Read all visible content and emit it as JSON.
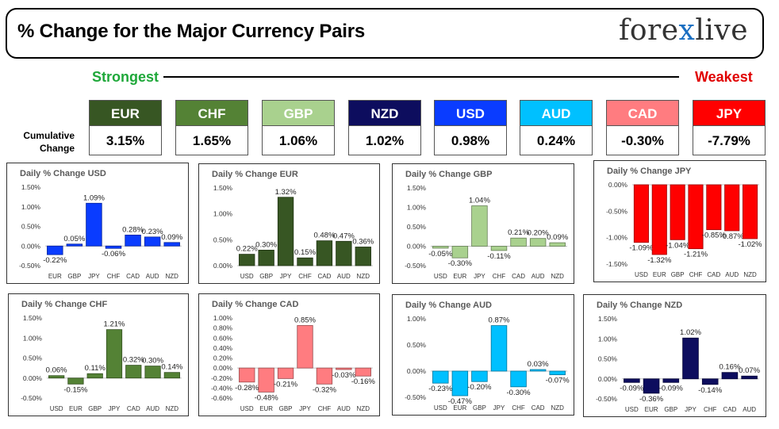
{
  "header": {
    "title": "% Change for the Major Currency Pairs",
    "logo_left": "fore",
    "logo_x": "x",
    "logo_right": "live"
  },
  "scale": {
    "strongest_label": "Strongest",
    "weakest_label": "Weakest",
    "cumulative_label_1": "Cumulative",
    "cumulative_label_2": "Change"
  },
  "colors": {
    "EUR": "#375623",
    "CHF": "#548235",
    "GBP": "#a9d18e",
    "NZD": "#0d0d5e",
    "USD": "#0a3cff",
    "AUD": "#00c0ff",
    "CAD": "#ff7c80",
    "JPY": "#ff0000",
    "strong": "#1fa83a",
    "weak": "#e00000"
  },
  "tiles": [
    {
      "currency": "EUR",
      "value": "3.15%"
    },
    {
      "currency": "CHF",
      "value": "1.65%"
    },
    {
      "currency": "GBP",
      "value": "1.06%"
    },
    {
      "currency": "NZD",
      "value": "1.02%"
    },
    {
      "currency": "USD",
      "value": "0.98%"
    },
    {
      "currency": "AUD",
      "value": "0.24%"
    },
    {
      "currency": "CAD",
      "value": "-0.30%"
    },
    {
      "currency": "JPY",
      "value": "-7.79%"
    }
  ],
  "chart_data": [
    {
      "type": "bar",
      "title": "Daily % Change USD",
      "base": "USD",
      "categories": [
        "EUR",
        "GBP",
        "JPY",
        "CHF",
        "CAD",
        "AUD",
        "NZD"
      ],
      "values": [
        -0.22,
        0.05,
        1.09,
        -0.06,
        0.28,
        0.23,
        0.09
      ],
      "labels": [
        "-0.22%",
        "0.05%",
        "1.09%",
        "-0.06%",
        "0.28%",
        "0.23%",
        "0.09%"
      ],
      "yticks": [
        "1.50%",
        "1.00%",
        "0.50%",
        "0.00%",
        "-0.50%"
      ],
      "ytick_values": [
        1.5,
        1.0,
        0.5,
        0.0,
        -0.5
      ],
      "ylim": [
        -0.5,
        1.5
      ]
    },
    {
      "type": "bar",
      "title": "Daily % Change EUR",
      "base": "EUR",
      "categories": [
        "USD",
        "GBP",
        "JPY",
        "CHF",
        "CAD",
        "AUD",
        "NZD"
      ],
      "values": [
        0.22,
        0.3,
        1.32,
        0.15,
        0.48,
        0.47,
        0.36
      ],
      "labels": [
        "0.22%",
        "0.30%",
        "1.32%",
        "0.15%",
        "0.48%",
        "0.47%",
        "0.36%"
      ],
      "yticks": [
        "1.50%",
        "1.00%",
        "0.50%",
        "0.00%"
      ],
      "ytick_values": [
        1.5,
        1.0,
        0.5,
        0.0
      ],
      "ylim": [
        0,
        1.5
      ]
    },
    {
      "type": "bar",
      "title": "Daily % Change GBP",
      "base": "GBP",
      "categories": [
        "USD",
        "EUR",
        "JPY",
        "CHF",
        "CAD",
        "AUD",
        "NZD"
      ],
      "values": [
        -0.05,
        -0.3,
        1.04,
        -0.11,
        0.21,
        0.2,
        0.09
      ],
      "labels": [
        "-0.05%",
        "-0.30%",
        "1.04%",
        "-0.11%",
        "0.21%",
        "0.20%",
        "0.09%"
      ],
      "yticks": [
        "1.50%",
        "1.00%",
        "0.50%",
        "0.00%",
        "-0.50%"
      ],
      "ytick_values": [
        1.5,
        1.0,
        0.5,
        0.0,
        -0.5
      ],
      "ylim": [
        -0.5,
        1.5
      ]
    },
    {
      "type": "bar",
      "title": "Daily % Change JPY",
      "base": "JPY",
      "categories": [
        "USD",
        "EUR",
        "GBP",
        "CHF",
        "CAD",
        "AUD",
        "NZD"
      ],
      "values": [
        -1.09,
        -1.32,
        -1.04,
        -1.21,
        -0.85,
        -0.87,
        -1.02
      ],
      "labels": [
        "-1.09%",
        "-1.32%",
        "-1.04%",
        "-1.21%",
        "-0.85%",
        "-0.87%",
        "-1.02%"
      ],
      "yticks": [
        "0.00%",
        "-0.50%",
        "-1.00%",
        "-1.50%"
      ],
      "ytick_values": [
        0.0,
        -0.5,
        -1.0,
        -1.5
      ],
      "ylim": [
        -1.5,
        0
      ]
    },
    {
      "type": "bar",
      "title": "Daily % Change CHF",
      "base": "CHF",
      "categories": [
        "USD",
        "EUR",
        "GBP",
        "JPY",
        "CAD",
        "AUD",
        "NZD"
      ],
      "values": [
        0.06,
        -0.15,
        0.11,
        1.21,
        0.32,
        0.3,
        0.14
      ],
      "labels": [
        "0.06%",
        "-0.15%",
        "0.11%",
        "1.21%",
        "0.32%",
        "0.30%",
        "0.14%"
      ],
      "yticks": [
        "1.50%",
        "1.00%",
        "0.50%",
        "0.00%",
        "-0.50%"
      ],
      "ytick_values": [
        1.5,
        1.0,
        0.5,
        0.0,
        -0.5
      ],
      "ylim": [
        -0.5,
        1.5
      ]
    },
    {
      "type": "bar",
      "title": "Daily % Change CAD",
      "base": "CAD",
      "categories": [
        "USD",
        "EUR",
        "GBP",
        "JPY",
        "CHF",
        "AUD",
        "NZD"
      ],
      "values": [
        -0.28,
        -0.48,
        -0.21,
        0.85,
        -0.32,
        -0.03,
        -0.16
      ],
      "labels": [
        "-0.28%",
        "-0.48%",
        "-0.21%",
        "0.85%",
        "-0.32%",
        "-0.03%",
        "-0.16%"
      ],
      "yticks": [
        "1.00%",
        "0.80%",
        "0.60%",
        "0.40%",
        "0.20%",
        "0.00%",
        "-0.20%",
        "-0.40%",
        "-0.60%"
      ],
      "ytick_values": [
        1.0,
        0.8,
        0.6,
        0.4,
        0.2,
        0.0,
        -0.2,
        -0.4,
        -0.6
      ],
      "ylim": [
        -0.6,
        1.0
      ]
    },
    {
      "type": "bar",
      "title": "Daily % Change AUD",
      "base": "AUD",
      "categories": [
        "USD",
        "EUR",
        "GBP",
        "JPY",
        "CHF",
        "CAD",
        "NZD"
      ],
      "values": [
        -0.23,
        -0.47,
        -0.2,
        0.87,
        -0.3,
        0.03,
        -0.07
      ],
      "labels": [
        "-0.23%",
        "-0.47%",
        "-0.20%",
        "0.87%",
        "-0.30%",
        "0.03%",
        "-0.07%"
      ],
      "yticks": [
        "1.00%",
        "0.50%",
        "0.00%",
        "-0.50%"
      ],
      "ytick_values": [
        1.0,
        0.5,
        0.0,
        -0.5
      ],
      "ylim": [
        -0.5,
        1.0
      ]
    },
    {
      "type": "bar",
      "title": "Daily % Change NZD",
      "base": "NZD",
      "categories": [
        "USD",
        "EUR",
        "GBP",
        "JPY",
        "CHF",
        "CAD",
        "AUD"
      ],
      "values": [
        -0.09,
        -0.36,
        -0.09,
        1.02,
        -0.14,
        0.16,
        0.07
      ],
      "labels": [
        "-0.09%",
        "-0.36%",
        "-0.09%",
        "1.02%",
        "-0.14%",
        "0.16%",
        "0.07%"
      ],
      "yticks": [
        "1.50%",
        "1.00%",
        "0.50%",
        "0.00%",
        "-0.50%"
      ],
      "ytick_values": [
        1.5,
        1.0,
        0.5,
        0.0,
        -0.5
      ],
      "ylim": [
        -0.5,
        1.5
      ]
    }
  ]
}
